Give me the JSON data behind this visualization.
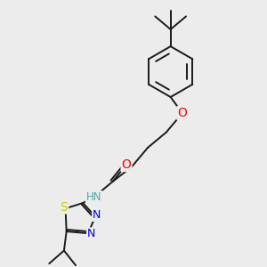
{
  "bg_color": "#ececec",
  "bond_color": "#1a1a1a",
  "bond_width": 1.4,
  "atom_colors": {
    "O": "#ff0000",
    "N": "#0000ee",
    "S": "#cccc00",
    "H": "#4da6a6",
    "C": "#1a1a1a"
  },
  "font_size": 8.5
}
